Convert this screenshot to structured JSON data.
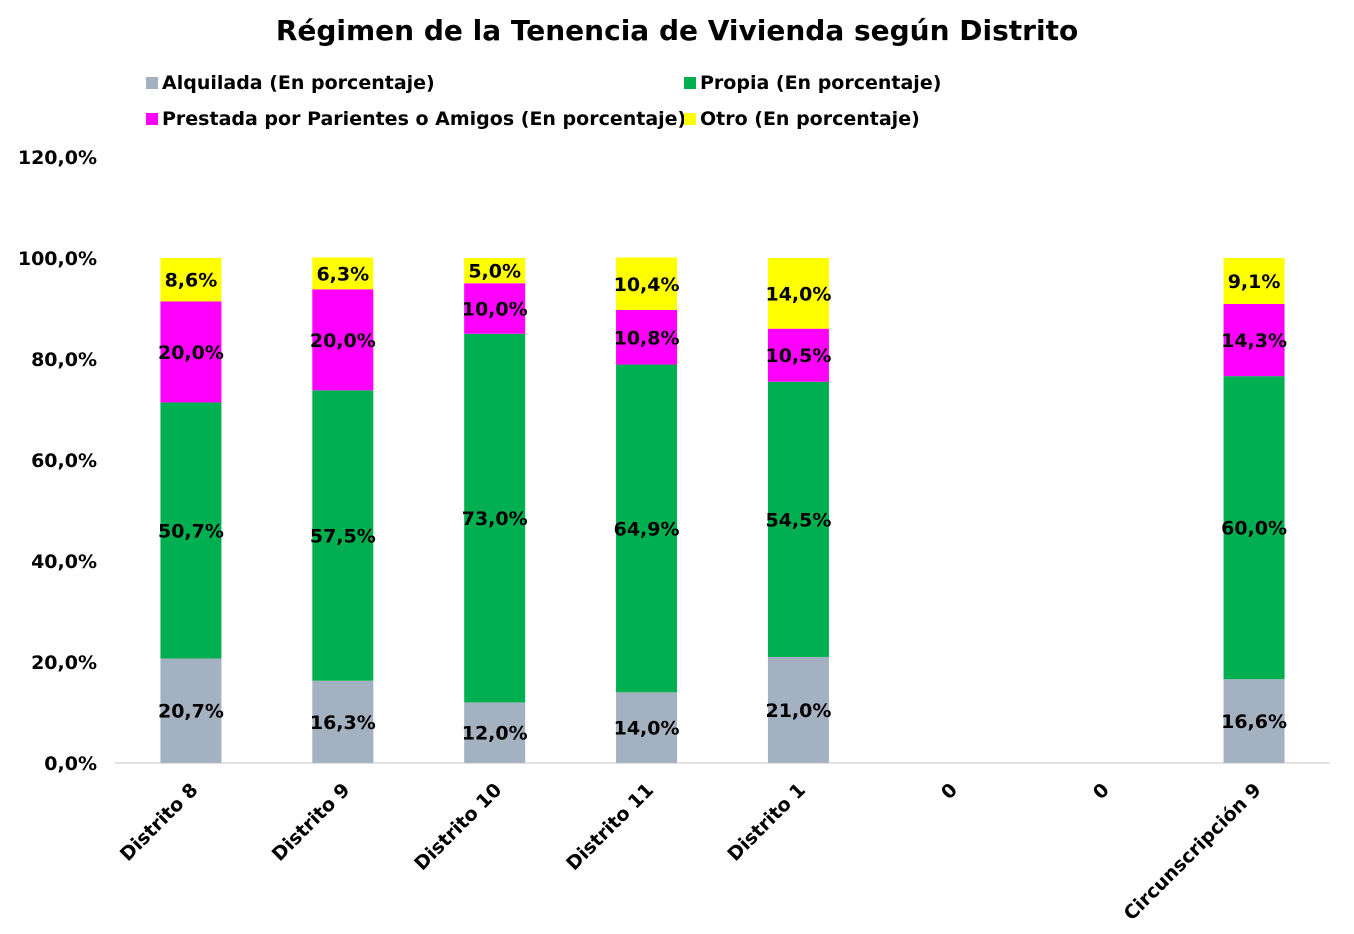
{
  "chart_data": {
    "type": "bar",
    "stacked": true,
    "title": "Régimen de la Tenencia de Vivienda según Distrito",
    "categories": [
      "Distrito 8",
      "Distrito 9",
      "Distrito 10",
      "Distrito 11",
      "Distrito 1",
      "0",
      "0",
      "Circunscripción 9"
    ],
    "series": [
      {
        "name": "Alquilada (En porcentaje)",
        "color": "#a4b1c0",
        "values": [
          20.7,
          16.3,
          12.0,
          14.0,
          21.0,
          null,
          null,
          16.6
        ],
        "labels": [
          "20,7%",
          "16,3%",
          "12,0%",
          "14,0%",
          "21,0%",
          "",
          "",
          "16,6%"
        ]
      },
      {
        "name": "Propia (En porcentaje)",
        "color": "#00b050",
        "values": [
          50.7,
          57.5,
          73.0,
          64.9,
          54.5,
          null,
          null,
          60.0
        ],
        "labels": [
          "50,7%",
          "57,5%",
          "73,0%",
          "64,9%",
          "54,5%",
          "",
          "",
          "60,0%"
        ]
      },
      {
        "name": "Prestada por Parientes o Amigos (En porcentaje)",
        "color": "#ff00ff",
        "values": [
          20.0,
          20.0,
          10.0,
          10.8,
          10.5,
          null,
          null,
          14.3
        ],
        "labels": [
          "20,0%",
          "20,0%",
          "10,0%",
          "10,8%",
          "10,5%",
          "",
          "",
          "14,3%"
        ]
      },
      {
        "name": "Otro (En porcentaje)",
        "color": "#ffff00",
        "values": [
          8.6,
          6.3,
          5.0,
          10.4,
          14.0,
          null,
          null,
          9.1
        ],
        "labels": [
          "8,6%",
          "6,3%",
          "5,0%",
          "10,4%",
          "14,0%",
          "",
          "",
          "9,1%"
        ]
      }
    ],
    "ylim": [
      0,
      120
    ],
    "yticks": [
      0,
      20,
      40,
      60,
      80,
      100,
      120
    ],
    "ytick_labels": [
      "0,0%",
      "20,0%",
      "40,0%",
      "60,0%",
      "80,0%",
      "100,0%",
      "120,0%"
    ],
    "xlabel": "",
    "ylabel": "",
    "grid": false,
    "legend_position": "top"
  }
}
